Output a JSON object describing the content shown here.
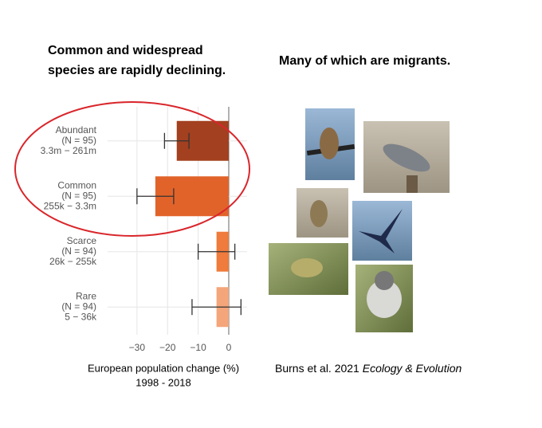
{
  "heading_left": [
    "Common and widespread",
    "species are rapidly declining."
  ],
  "heading_right": "Many of which are migrants.",
  "citation": {
    "authors": "Burns et al. 2021",
    "journal": "Ecology & Evolution"
  },
  "chart_data": {
    "type": "bar",
    "orientation": "horizontal",
    "categories": [
      "Abundant",
      "Common",
      "Scarce",
      "Rare"
    ],
    "n_labels": [
      "(N = 95)",
      "(N = 95)",
      "(N = 94)",
      "(N = 94)"
    ],
    "range_labels": [
      "3.3m − 261m",
      "255k − 3.3m",
      "26k − 255k",
      "5 − 36k"
    ],
    "values": [
      -17,
      -24,
      -4,
      -4
    ],
    "errors": [
      4,
      6,
      6,
      8
    ],
    "colors": [
      "#a3401f",
      "#e2632a",
      "#ef7b3c",
      "#f4a57a"
    ],
    "xlim": [
      -37,
      6
    ],
    "xticks": [
      {
        "value": -30,
        "label": "−30"
      },
      {
        "value": -20,
        "label": "−20"
      },
      {
        "value": -10,
        "label": "−10"
      },
      0
    ],
    "xlabel": [
      "European population change (%)",
      "1998 - 2018"
    ],
    "grid": true
  }
}
